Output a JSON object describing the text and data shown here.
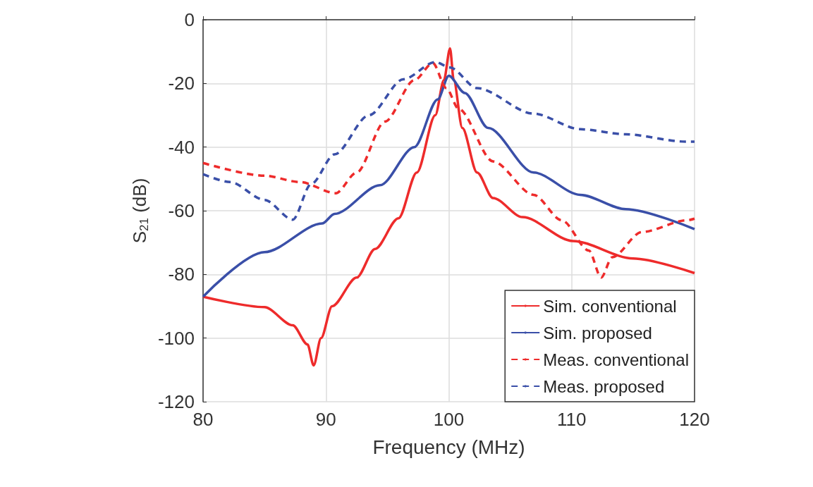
{
  "chart_data": {
    "type": "line",
    "xlabel": "Frequency (MHz)",
    "ylabel": "S$_{21}$ (dB)",
    "xlim": [
      80,
      120
    ],
    "ylim": [
      -120,
      0
    ],
    "xticks": [
      80,
      90,
      100,
      110,
      120
    ],
    "yticks": [
      -120,
      -100,
      -80,
      -60,
      -40,
      -20,
      0
    ],
    "grid": true,
    "legend": "bottom right",
    "marker": "none",
    "series": [
      {
        "name": "Sim. conventional",
        "color": "#ee2b2b",
        "line_style": "solid",
        "x": [
          80,
          85,
          87.3,
          88.5,
          89,
          89.6,
          90.5,
          92.5,
          94,
          95.9,
          97.4,
          98.9,
          99.6,
          100.1,
          100.4,
          101.1,
          102.3,
          103.6,
          106,
          110.1,
          115,
          120
        ],
        "values": [
          -87,
          -90.3,
          -96,
          -102,
          -108.6,
          -100,
          -90,
          -81,
          -72,
          -62.4,
          -48,
          -30,
          -19,
          -9,
          -19,
          -34,
          -48,
          -56,
          -62,
          -69.5,
          -75,
          -79.6
        ]
      },
      {
        "name": "Sim. proposed",
        "color": "#3a4fa8",
        "line_style": "solid",
        "x": [
          80,
          85,
          89.7,
          90.7,
          94.4,
          97.2,
          99.1,
          100,
          101.3,
          103.2,
          106.9,
          110.7,
          114.4,
          120
        ],
        "values": [
          -87,
          -73,
          -64,
          -61,
          -52,
          -40,
          -25,
          -17.6,
          -23,
          -34,
          -48,
          -55,
          -59.5,
          -65.8
        ]
      },
      {
        "name": "Meas. conventional",
        "color": "#ee2b2b",
        "line_style": "dashed",
        "x": [
          80,
          85,
          87.9,
          90.8,
          92.5,
          94.8,
          97.2,
          98.7,
          99.8,
          100.8,
          103.6,
          106.9,
          109.2,
          111.4,
          112.4,
          113.3,
          115.7,
          119.4,
          120
        ],
        "values": [
          -45,
          -49,
          -51,
          -54.5,
          -48,
          -32,
          -19,
          -13.6,
          -21.5,
          -28,
          -44.5,
          -55,
          -63,
          -72.5,
          -81,
          -74.6,
          -66.7,
          -63,
          -62.5
        ]
      },
      {
        "name": "Meas. proposed",
        "color": "#3a4fa8",
        "line_style": "dashed",
        "x": [
          80,
          82.2,
          85,
          87.3,
          88.8,
          90.7,
          93.5,
          96.3,
          98.9,
          100.1,
          102.3,
          106.9,
          110.7,
          114.4,
          119.3,
          120
        ],
        "values": [
          -48.5,
          -51,
          -56.6,
          -62.8,
          -51.6,
          -42.3,
          -30,
          -18.7,
          -13.3,
          -15,
          -21.5,
          -29.5,
          -34.4,
          -36,
          -38.3,
          -38.3
        ]
      }
    ]
  }
}
